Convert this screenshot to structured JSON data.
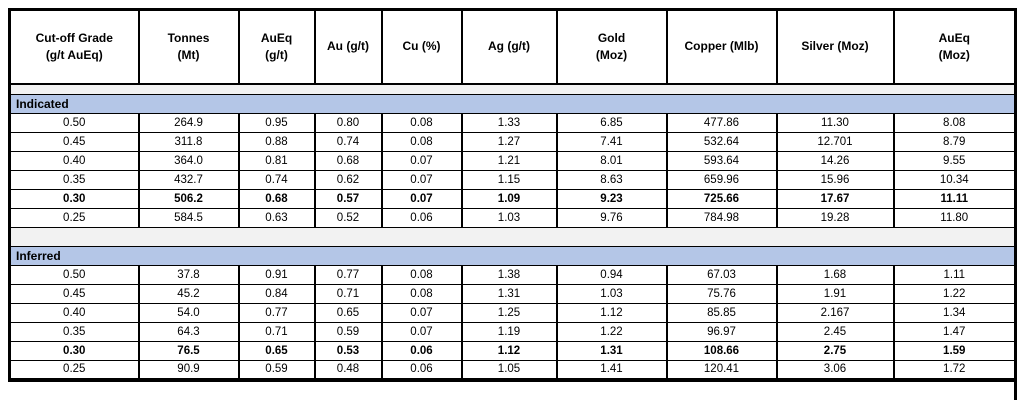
{
  "table": {
    "header": [
      "Cut-off Grade\n(g/t AuEq)",
      "Tonnes\n(Mt)",
      "AuEq\n(g/t)",
      "Au (g/t)",
      "Cu (%)",
      "Ag (g/t)",
      "Gold\n(Moz)",
      "Copper (Mlb)",
      "Silver (Moz)",
      "AuEq\n(Moz)"
    ],
    "sections": [
      {
        "label": "Indicated",
        "rows": [
          {
            "bold": false,
            "values": [
              "0.50",
              "264.9",
              "0.95",
              "0.80",
              "0.08",
              "1.33",
              "6.85",
              "477.86",
              "11.30",
              "8.08"
            ]
          },
          {
            "bold": false,
            "values": [
              "0.45",
              "311.8",
              "0.88",
              "0.74",
              "0.08",
              "1.27",
              "7.41",
              "532.64",
              "12.701",
              "8.79"
            ]
          },
          {
            "bold": false,
            "values": [
              "0.40",
              "364.0",
              "0.81",
              "0.68",
              "0.07",
              "1.21",
              "8.01",
              "593.64",
              "14.26",
              "9.55"
            ]
          },
          {
            "bold": false,
            "values": [
              "0.35",
              "432.7",
              "0.74",
              "0.62",
              "0.07",
              "1.15",
              "8.63",
              "659.96",
              "15.96",
              "10.34"
            ]
          },
          {
            "bold": true,
            "values": [
              "0.30",
              "506.2",
              "0.68",
              "0.57",
              "0.07",
              "1.09",
              "9.23",
              "725.66",
              "17.67",
              "11.11"
            ]
          },
          {
            "bold": false,
            "values": [
              "0.25",
              "584.5",
              "0.63",
              "0.52",
              "0.06",
              "1.03",
              "9.76",
              "784.98",
              "19.28",
              "11.80"
            ]
          }
        ]
      },
      {
        "label": "Inferred",
        "rows": [
          {
            "bold": false,
            "values": [
              "0.50",
              "37.8",
              "0.91",
              "0.77",
              "0.08",
              "1.38",
              "0.94",
              "67.03",
              "1.68",
              "1.11"
            ]
          },
          {
            "bold": false,
            "values": [
              "0.45",
              "45.2",
              "0.84",
              "0.71",
              "0.08",
              "1.31",
              "1.03",
              "75.76",
              "1.91",
              "1.22"
            ]
          },
          {
            "bold": false,
            "values": [
              "0.40",
              "54.0",
              "0.77",
              "0.65",
              "0.07",
              "1.25",
              "1.12",
              "85.85",
              "2.167",
              "1.34"
            ]
          },
          {
            "bold": false,
            "values": [
              "0.35",
              "64.3",
              "0.71",
              "0.59",
              "0.07",
              "1.19",
              "1.22",
              "96.97",
              "2.45",
              "1.47"
            ]
          },
          {
            "bold": true,
            "values": [
              "0.30",
              "76.5",
              "0.65",
              "0.53",
              "0.06",
              "1.12",
              "1.31",
              "108.66",
              "2.75",
              "1.59"
            ]
          },
          {
            "bold": false,
            "values": [
              "0.25",
              "90.9",
              "0.59",
              "0.48",
              "0.06",
              "1.05",
              "1.41",
              "120.41",
              "3.06",
              "1.72"
            ]
          }
        ]
      }
    ]
  },
  "colors": {
    "section_header_bg": "#b4c6e7",
    "spacer_bg": "#f2f2f2",
    "border": "#000000",
    "table_bg": "#ffffff"
  }
}
